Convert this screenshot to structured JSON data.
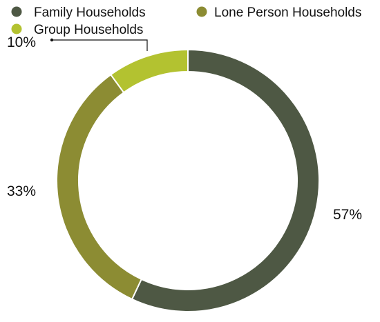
{
  "chart_data": {
    "type": "pie",
    "donut": true,
    "title": "",
    "legend_position": "top",
    "series": [
      {
        "name": "Family Households",
        "value": 57,
        "label": "57%",
        "color": "#4E5844"
      },
      {
        "name": "Lone Person Households",
        "value": 33,
        "label": "33%",
        "color": "#8C8C33"
      },
      {
        "name": "Group Households",
        "value": 10,
        "label": "10%",
        "color": "#B3C230"
      }
    ]
  }
}
